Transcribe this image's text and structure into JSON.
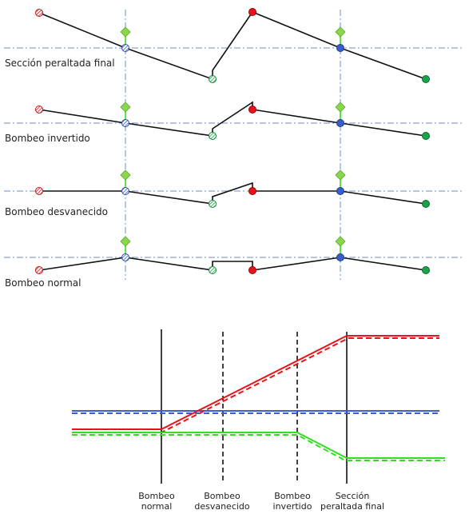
{
  "sections": {
    "final": "Sección peraltada final",
    "inverted": "Bombeo invertido",
    "vanished": "Bombeo desvanecido",
    "normal": "Bombeo normal"
  },
  "stages": {
    "normal_1": "Bombeo",
    "normal_2": "normal",
    "vanished_1": "Bombeo",
    "vanished_2": "desvanecido",
    "inverted_1": "Bombeo",
    "inverted_2": "invertido",
    "final_1": "Sección",
    "final_2": "peraltada final"
  },
  "colors": {
    "red": "#e8141c",
    "blue": "#3a5fcd",
    "green": "#1aa34a",
    "lightgreen": "#33dd22",
    "axis": "#6a8fc8",
    "diamond": "#8bd64a"
  }
}
